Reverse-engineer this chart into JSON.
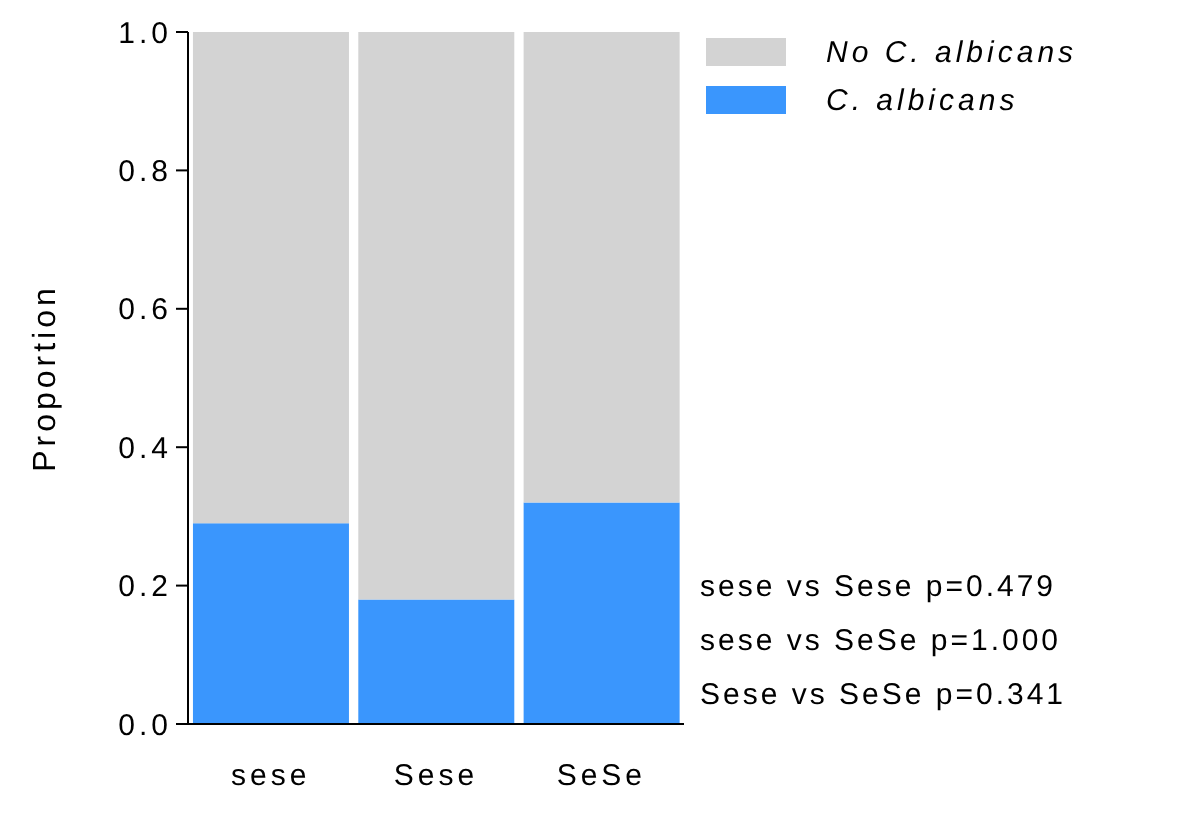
{
  "chart_data": {
    "type": "bar",
    "stacked": true,
    "ylabel": "Proportion",
    "categories": [
      "sese",
      "Sese",
      "SeSe"
    ],
    "series": [
      {
        "name": "C. albicans",
        "color": "#3a96fd",
        "values": [
          0.29,
          0.18,
          0.32
        ]
      },
      {
        "name": "No C. albicans",
        "color": "#d3d3d3",
        "values": [
          0.71,
          0.82,
          0.68
        ]
      }
    ],
    "ylim": [
      0,
      1
    ],
    "yticks": [
      {
        "value": 0,
        "label": "0.0"
      },
      {
        "value": 0.2,
        "label": "0.2"
      },
      {
        "value": 0.4,
        "label": "0.4"
      },
      {
        "value": 0.6,
        "label": "0.6"
      },
      {
        "value": 0.8,
        "label": "0.8"
      },
      {
        "value": 1,
        "label": "1.0"
      }
    ],
    "grid": false,
    "legend": "top right",
    "annotations": [
      "sese vs Sese p=0.479",
      "sese vs SeSe p=1.000",
      "Sese vs SeSe p=0.341"
    ]
  }
}
